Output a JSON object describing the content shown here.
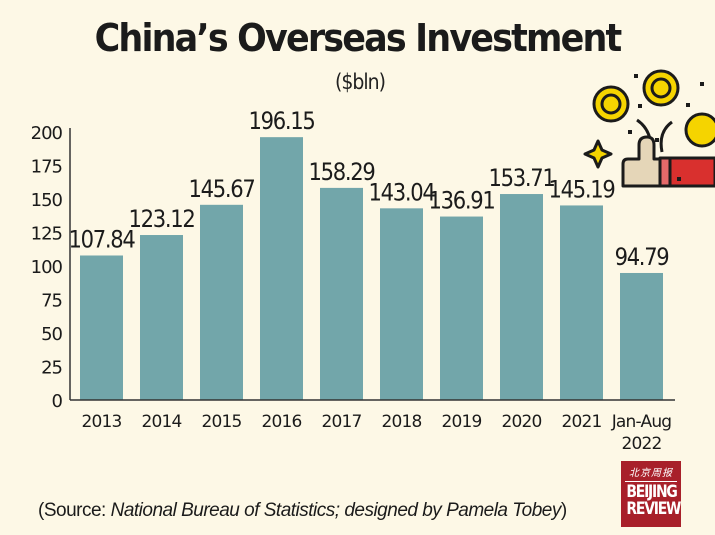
{
  "chart_data": {
    "type": "bar",
    "title": "China’s Overseas Investment",
    "subtitle": "($bln)",
    "xlabel": "",
    "ylabel": "",
    "ylim": [
      0,
      200
    ],
    "yticks": [
      0,
      25,
      50,
      75,
      100,
      125,
      150,
      175,
      200
    ],
    "categories": [
      "2013",
      "2014",
      "2015",
      "2016",
      "2017",
      "2018",
      "2019",
      "2020",
      "2021",
      "Jan-Aug 2022"
    ],
    "category_lines": [
      [
        "2013"
      ],
      [
        "2014"
      ],
      [
        "2015"
      ],
      [
        "2016"
      ],
      [
        "2017"
      ],
      [
        "2018"
      ],
      [
        "2019"
      ],
      [
        "2020"
      ],
      [
        "2021"
      ],
      [
        "Jan-Aug",
        "2022"
      ]
    ],
    "values": [
      107.84,
      123.12,
      145.67,
      196.15,
      158.29,
      143.04,
      136.91,
      153.71,
      145.19,
      94.79
    ],
    "data_labels": [
      "107.84",
      "123.12",
      "145.67",
      "196.15",
      "158.29",
      "143.04",
      "136.91",
      "153.71",
      "145.19",
      "94.79"
    ],
    "grid": false,
    "legend": "none"
  },
  "colors": {
    "background": "#fdf8e6",
    "bar": "#72a6aa",
    "axis": "#333333",
    "text": "#1b1b1b",
    "logo_bg": "#a8202a",
    "coin": "#f5d400",
    "thumb": "#e5d6b8",
    "sleeve": "#d9302e"
  },
  "source": {
    "prefix": "(Source: ",
    "italic": "National Bureau of Statistics; designed by Pamela Tobey",
    "suffix": ")"
  },
  "logo": {
    "chinese": "北京周报",
    "line1": "BEIJING",
    "line2": "REVIEW"
  },
  "illustration": {
    "icon": "thumbs-up-coins-icon"
  }
}
